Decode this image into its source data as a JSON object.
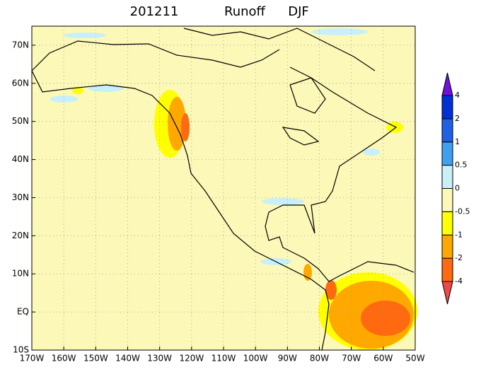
{
  "map": {
    "title": [
      "201211",
      "Runoff",
      "DJF"
    ],
    "xlim": [
      -170,
      -50
    ],
    "ylim": [
      -10,
      75
    ],
    "xticks": [
      {
        "value": -170,
        "label": "170W"
      },
      {
        "value": -160,
        "label": "160W"
      },
      {
        "value": -150,
        "label": "150W"
      },
      {
        "value": -140,
        "label": "140W"
      },
      {
        "value": -130,
        "label": "130W"
      },
      {
        "value": -120,
        "label": "120W"
      },
      {
        "value": -110,
        "label": "110W"
      },
      {
        "value": -100,
        "label": "100W"
      },
      {
        "value": -90,
        "label": "90W"
      },
      {
        "value": -80,
        "label": "80W"
      },
      {
        "value": -70,
        "label": "70W"
      },
      {
        "value": -60,
        "label": "60W"
      },
      {
        "value": -50,
        "label": "50W"
      }
    ],
    "yticks": [
      {
        "value": -10,
        "label": "10S"
      },
      {
        "value": 0,
        "label": "EQ"
      },
      {
        "value": 10,
        "label": "10N"
      },
      {
        "value": 20,
        "label": "20N"
      },
      {
        "value": 30,
        "label": "30N"
      },
      {
        "value": 40,
        "label": "40N"
      },
      {
        "value": 50,
        "label": "50N"
      },
      {
        "value": 60,
        "label": "60N"
      },
      {
        "value": 70,
        "label": "70N"
      }
    ],
    "background": "#fcf8b8"
  },
  "colorbar": {
    "levels": [
      -4,
      -2,
      -1,
      -0.5,
      0,
      0.5,
      1,
      2,
      4
    ],
    "colors": [
      "#f04848",
      "#ff6a10",
      "#ffa800",
      "#ffff00",
      "#fcf8b8",
      "#c8f0fa",
      "#40a0f0",
      "#2060e8",
      "#0030d8",
      "#7010e0"
    ]
  }
}
